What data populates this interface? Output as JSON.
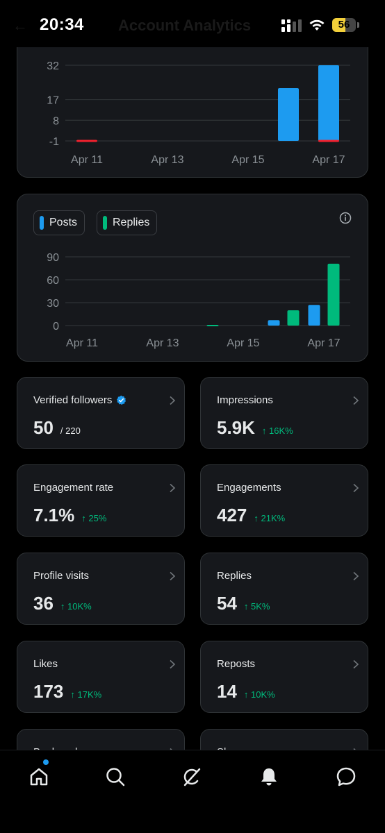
{
  "status_bar": {
    "time": "20:34",
    "battery": "56",
    "battery_level": 0.56,
    "ghost_title": "Account Analytics"
  },
  "top_chart": {
    "chart_data": {
      "type": "bar",
      "x_ticks": [
        "Apr 11",
        "Apr 13",
        "Apr 15",
        "Apr 17"
      ],
      "y_ticks": [
        "32",
        "17",
        "8",
        "-1"
      ],
      "ylim": [
        -1,
        32
      ],
      "series": [
        {
          "color": "#1d9bf0",
          "points": [
            {
              "x": "Apr 16",
              "value": 22
            },
            {
              "x": "Apr 17",
              "value": 32
            }
          ]
        },
        {
          "color": "#f4212e",
          "points": [
            {
              "x": "Apr 11",
              "value": -1
            },
            {
              "x": "Apr 17",
              "value": -1
            }
          ]
        }
      ]
    }
  },
  "posts_chart": {
    "legend": [
      {
        "label": "Posts",
        "color": "#1d9bf0"
      },
      {
        "label": "Replies",
        "color": "#00ba7c"
      }
    ],
    "chart_data": {
      "type": "bar",
      "x_ticks": [
        "Apr 11",
        "Apr 13",
        "Apr 15",
        "Apr 17"
      ],
      "y_ticks": [
        "90",
        "60",
        "30",
        "0"
      ],
      "ylim": [
        0,
        90
      ],
      "series": [
        {
          "name": "Posts",
          "color": "#1d9bf0",
          "points": [
            {
              "x": "Apr 16",
              "value": 7
            },
            {
              "x": "Apr 17",
              "value": 27
            }
          ]
        },
        {
          "name": "Replies",
          "color": "#00ba7c",
          "points": [
            {
              "x": "Apr 14",
              "value": 1
            },
            {
              "x": "Apr 16",
              "value": 20
            },
            {
              "x": "Apr 17",
              "value": 81
            }
          ]
        }
      ]
    }
  },
  "metrics": [
    {
      "label": "Verified followers",
      "value": "50",
      "extra": "/ 220",
      "verified": true
    },
    {
      "label": "Impressions",
      "value": "5.9K",
      "extra": "↑ 16K%"
    },
    {
      "label": "Engagement rate",
      "value": "7.1%",
      "extra": "↑ 25%"
    },
    {
      "label": "Engagements",
      "value": "427",
      "extra": "↑ 21K%"
    },
    {
      "label": "Profile visits",
      "value": "36",
      "extra": "↑ 10K%"
    },
    {
      "label": "Replies",
      "value": "54",
      "extra": "↑ 5K%"
    },
    {
      "label": "Likes",
      "value": "173",
      "extra": "↑ 17K%"
    },
    {
      "label": "Reposts",
      "value": "14",
      "extra": "↑ 10K%"
    },
    {
      "label": "Bookmarks",
      "value": ""
    },
    {
      "label": "Shares",
      "value": ""
    }
  ],
  "nav": {
    "items": [
      "home-icon",
      "search-icon",
      "grok-icon",
      "notifications-icon",
      "messages-icon"
    ],
    "colors": {
      "active": "#e7e9ea",
      "dot": "#1d9bf0"
    }
  }
}
